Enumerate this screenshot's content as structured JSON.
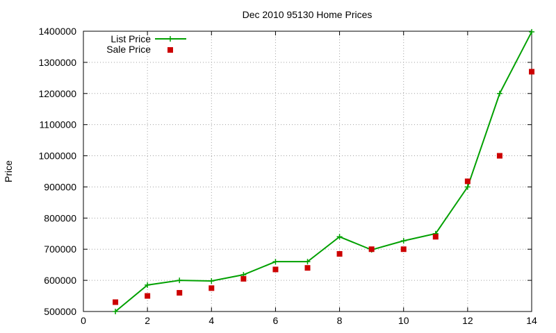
{
  "chart_data": {
    "type": "line",
    "title": "Dec 2010 95130 Home Prices",
    "xlabel": "",
    "ylabel": "Price",
    "xlim": [
      0,
      14
    ],
    "ylim": [
      500000,
      1400000
    ],
    "xticks": [
      0,
      2,
      4,
      6,
      8,
      10,
      12,
      14
    ],
    "yticks": [
      500000,
      600000,
      700000,
      800000,
      900000,
      1000000,
      1100000,
      1200000,
      1300000,
      1400000
    ],
    "grid": true,
    "legend_position": "top-left",
    "series": [
      {
        "name": "List Price",
        "style": "line+points",
        "color": "#00a000",
        "x": [
          1,
          2,
          3,
          4,
          5,
          6,
          7,
          8,
          9,
          10,
          11,
          12,
          13,
          14
        ],
        "y": [
          500000,
          585000,
          600000,
          598000,
          618000,
          660000,
          660000,
          740000,
          698000,
          727000,
          750000,
          900000,
          1200000,
          1398000
        ]
      },
      {
        "name": "Sale Price",
        "style": "points",
        "color": "#cc0000",
        "x": [
          1,
          2,
          3,
          4,
          5,
          6,
          7,
          8,
          9,
          10,
          11,
          12,
          13,
          14
        ],
        "y": [
          530000,
          550000,
          560000,
          575000,
          605000,
          635000,
          640000,
          685000,
          700000,
          700000,
          740000,
          918000,
          1000000,
          1270000
        ]
      }
    ]
  }
}
